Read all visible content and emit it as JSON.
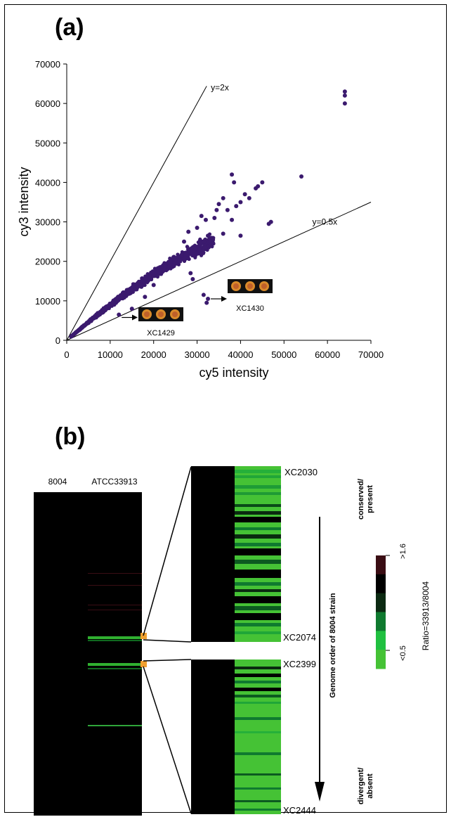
{
  "panel_a": {
    "label": "(a)"
  },
  "panel_b": {
    "label": "(b)",
    "col_8004": "8004",
    "col_atcc": "ATCC33913",
    "gene_top_start": "XC2030",
    "gene_top_end": "XC2074",
    "gene_bottom_start": "XC2399",
    "gene_bottom_end": "XC2444",
    "conserved_label_1": "conserved/",
    "conserved_label_2": "present",
    "divergent_label_1": "divergent/",
    "divergent_label_2": "absent",
    "genome_order_label": "Genome order of 8004 strain",
    "legend_high": ">1.6",
    "legend_low": "<0.5",
    "legend_title": "Ratio=33913/8004",
    "legend_colors": [
      "#3a0d14",
      "#000000",
      "#0c2a12",
      "#0f7a2f",
      "#20c040",
      "#45c235"
    ]
  },
  "chart_data": {
    "type": "scatter",
    "xlabel": "cy5 intensity",
    "ylabel": "cy3 intensity",
    "xlim": [
      0,
      70000
    ],
    "ylim": [
      0,
      70000
    ],
    "xticks": [
      "0",
      "10000",
      "20000",
      "30000",
      "40000",
      "50000",
      "60000",
      "70000"
    ],
    "yticks": [
      "0",
      "10000",
      "20000",
      "30000",
      "40000",
      "50000",
      "60000",
      "70000"
    ],
    "point_color": "#3b1a6e",
    "reference_lines": [
      {
        "label": "y=2x",
        "slope": 2
      },
      {
        "label": "y=0.5x",
        "slope": 0.5
      }
    ],
    "annotations": [
      {
        "label": "XC1429",
        "x": 12000,
        "y": 6500
      },
      {
        "label": "XC1430",
        "x": 32500,
        "y": 10500
      }
    ],
    "outliers": [
      {
        "x": 64000,
        "y": 63000
      },
      {
        "x": 64000,
        "y": 62000
      },
      {
        "x": 64000,
        "y": 60000
      },
      {
        "x": 54000,
        "y": 41500
      },
      {
        "x": 45000,
        "y": 40000
      },
      {
        "x": 44000,
        "y": 39000
      },
      {
        "x": 43500,
        "y": 38500
      },
      {
        "x": 38000,
        "y": 42000
      },
      {
        "x": 38500,
        "y": 40000
      },
      {
        "x": 41000,
        "y": 37000
      },
      {
        "x": 42000,
        "y": 36000
      },
      {
        "x": 40000,
        "y": 35000
      },
      {
        "x": 39000,
        "y": 34000
      },
      {
        "x": 37000,
        "y": 33000
      },
      {
        "x": 34500,
        "y": 33000
      },
      {
        "x": 35000,
        "y": 34500
      },
      {
        "x": 36000,
        "y": 36000
      },
      {
        "x": 47000,
        "y": 30000
      },
      {
        "x": 46500,
        "y": 29500
      },
      {
        "x": 38000,
        "y": 30500
      },
      {
        "x": 34000,
        "y": 31000
      },
      {
        "x": 32000,
        "y": 30500
      },
      {
        "x": 31000,
        "y": 31500
      },
      {
        "x": 40000,
        "y": 26500
      },
      {
        "x": 36000,
        "y": 27000
      },
      {
        "x": 33000,
        "y": 24000
      },
      {
        "x": 31000,
        "y": 22000
      },
      {
        "x": 32500,
        "y": 26500
      },
      {
        "x": 28500,
        "y": 17000
      },
      {
        "x": 29000,
        "y": 15500
      },
      {
        "x": 26000,
        "y": 20000
      },
      {
        "x": 32500,
        "y": 10500
      },
      {
        "x": 31500,
        "y": 11500
      },
      {
        "x": 32200,
        "y": 9500
      },
      {
        "x": 12000,
        "y": 6500
      },
      {
        "x": 15000,
        "y": 8000
      },
      {
        "x": 18000,
        "y": 11000
      },
      {
        "x": 20000,
        "y": 14000
      },
      {
        "x": 27000,
        "y": 25000
      },
      {
        "x": 28000,
        "y": 27500
      },
      {
        "x": 30000,
        "y": 28500
      }
    ]
  }
}
